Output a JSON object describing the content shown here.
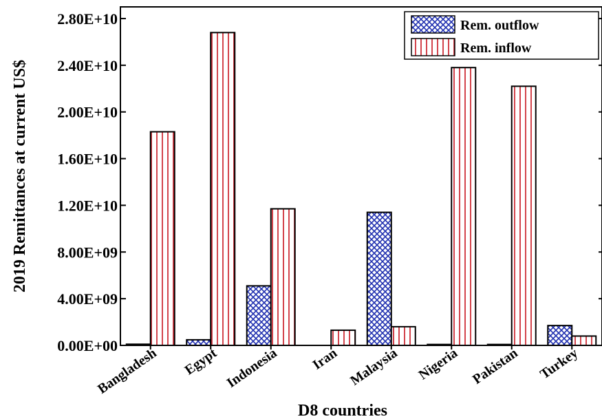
{
  "chart_data": {
    "type": "bar",
    "categories": [
      "Bangladesh",
      "Egypt",
      "Indonesia",
      "Iran",
      "Malaysia",
      "Nigeria",
      "Pakistan",
      "Turkey"
    ],
    "series": [
      {
        "name": "Rem. outflow",
        "values": [
          100000000.0,
          480000000.0,
          5100000000.0,
          0,
          11400000000.0,
          80000000.0,
          80000000.0,
          1700000000.0
        ],
        "color": "#1f2fb0",
        "pattern": "crosshatch"
      },
      {
        "name": "Rem. inflow",
        "values": [
          18300000000.0,
          26800000000.0,
          11700000000.0,
          1300000000.0,
          1600000000.0,
          23800000000.0,
          22200000000.0,
          800000000.0
        ],
        "color": "#c8141e",
        "pattern": "vertical-lines"
      }
    ],
    "xlabel": "D8 countries",
    "ylabel": "2019 Remittances at current US$",
    "ylim": [
      0,
      29000000000.0
    ],
    "yticks": [
      0,
      4000000000.0,
      8000000000.0,
      12000000000.0,
      16000000000.0,
      20000000000.0,
      24000000000.0,
      28000000000.0
    ],
    "ytick_labels": [
      "0.00E+00",
      "4.00E+09",
      "8.00E+09",
      "1.20E+10",
      "1.60E+10",
      "2.00E+10",
      "2.40E+10",
      "2.80E+10"
    ],
    "legend_position": "top-right",
    "grid": false
  }
}
